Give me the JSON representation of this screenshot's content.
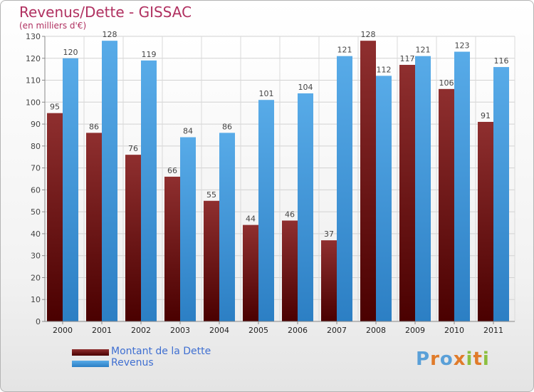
{
  "header": {
    "title": "Revenus/Dette - GISSAC",
    "subtitle": "(en milliers d'€)"
  },
  "legend": {
    "items": [
      {
        "label": "Montant de la Dette",
        "color": "#7a1a1a"
      },
      {
        "label": "Revenus",
        "color": "#4b9fe2"
      }
    ]
  },
  "logo": {
    "letters": [
      {
        "ch": "P",
        "color": "#5aa0d8"
      },
      {
        "ch": "r",
        "color": "#e07b2a"
      },
      {
        "ch": "o",
        "color": "#5aa0d8"
      },
      {
        "ch": "x",
        "color": "#e07b2a"
      },
      {
        "ch": "i",
        "color": "#8cbf3f"
      },
      {
        "ch": "t",
        "color": "#e07b2a"
      },
      {
        "ch": "i",
        "color": "#8cbf3f"
      }
    ]
  },
  "chart_data": {
    "type": "bar",
    "title": "Revenus/Dette - GISSAC",
    "subtitle": "(en milliers d'€)",
    "xlabel": "",
    "ylabel": "",
    "categories": [
      "2000",
      "2001",
      "2002",
      "2003",
      "2004",
      "2005",
      "2006",
      "2007",
      "2008",
      "2009",
      "2010",
      "2011"
    ],
    "series": [
      {
        "name": "Montant de la Dette",
        "color": "#7a1a1a",
        "values": [
          95,
          86,
          76,
          66,
          55,
          44,
          46,
          37,
          128,
          117,
          106,
          91
        ]
      },
      {
        "name": "Revenus",
        "color": "#4b9fe2",
        "values": [
          120,
          128,
          119,
          84,
          86,
          101,
          104,
          121,
          112,
          121,
          123,
          116
        ]
      }
    ],
    "ylim": [
      0,
      130
    ],
    "yticks": [
      0,
      10,
      20,
      30,
      40,
      50,
      60,
      70,
      80,
      90,
      100,
      110,
      120,
      130
    ],
    "grid": true,
    "legend_position": "bottom-left"
  }
}
